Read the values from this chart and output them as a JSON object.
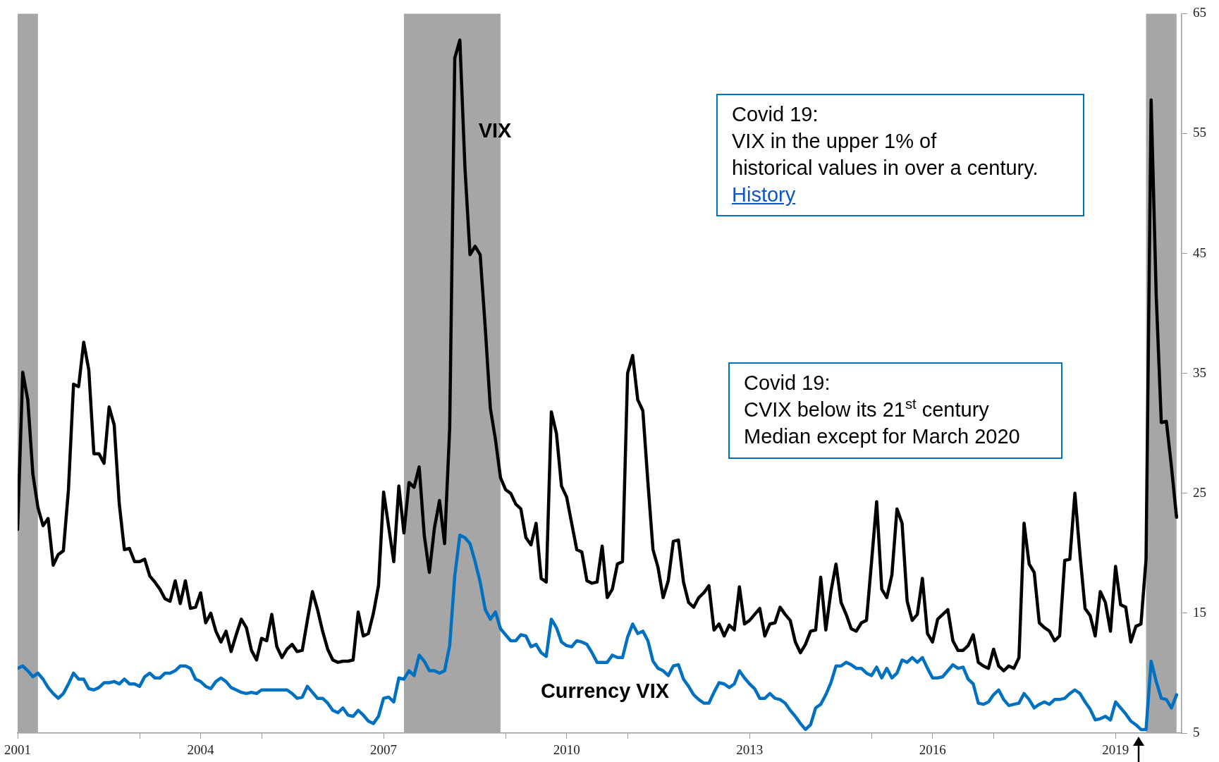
{
  "chart_data": {
    "type": "line",
    "annotations": [
      "Covid 19:\nVIX in the upper 1% of\nhistorical values in over a century.",
      "History",
      "Covid 19:\nCVIX below its 21$^{st}$ century\nMedian except for March 2020"
    ],
    "x": [
      "2001-08",
      "2001-09",
      "2001-10",
      "2001-11",
      "2001-12",
      "2002-01",
      "2002-02",
      "2002-03",
      "2002-04",
      "2002-05",
      "2002-06",
      "2002-07",
      "2002-08",
      "2002-09",
      "2002-10",
      "2002-11",
      "2002-12",
      "2003-01",
      "2003-02",
      "2003-03",
      "2003-04",
      "2003-05",
      "2003-06",
      "2003-07",
      "2003-08",
      "2003-09",
      "2003-10",
      "2003-11",
      "2003-12",
      "2004-01",
      "2004-02",
      "2004-03",
      "2004-04",
      "2004-05",
      "2004-06",
      "2004-07",
      "2004-08",
      "2004-09",
      "2004-10",
      "2004-11",
      "2004-12",
      "2005-01",
      "2005-02",
      "2005-03",
      "2005-04",
      "2005-05",
      "2005-06",
      "2005-07",
      "2005-08",
      "2005-09",
      "2005-10",
      "2005-11",
      "2005-12",
      "2006-01",
      "2006-02",
      "2006-03",
      "2006-04",
      "2006-05",
      "2006-06",
      "2006-07",
      "2006-08",
      "2006-09",
      "2006-10",
      "2006-11",
      "2006-12",
      "2007-01",
      "2007-02",
      "2007-03",
      "2007-04",
      "2007-05",
      "2007-06",
      "2007-07",
      "2007-08",
      "2007-09",
      "2007-10",
      "2007-11",
      "2007-12",
      "2008-01",
      "2008-02",
      "2008-03",
      "2008-04",
      "2008-05",
      "2008-06",
      "2008-07",
      "2008-08",
      "2008-09",
      "2008-10",
      "2008-11",
      "2008-12",
      "2009-01",
      "2009-02",
      "2009-03",
      "2009-04",
      "2009-05",
      "2009-06",
      "2009-07",
      "2009-08",
      "2009-09",
      "2009-10",
      "2009-11",
      "2009-12",
      "2010-01",
      "2010-02",
      "2010-03",
      "2010-04",
      "2010-05",
      "2010-06",
      "2010-07",
      "2010-08",
      "2010-09",
      "2010-10",
      "2010-11",
      "2010-12",
      "2011-01",
      "2011-02",
      "2011-03",
      "2011-04",
      "2011-05",
      "2011-06",
      "2011-07",
      "2011-08",
      "2011-09",
      "2011-10",
      "2011-11",
      "2011-12",
      "2012-01",
      "2012-02",
      "2012-03",
      "2012-04",
      "2012-05",
      "2012-06",
      "2012-07",
      "2012-08",
      "2012-09",
      "2012-10",
      "2012-11",
      "2012-12",
      "2013-01",
      "2013-02",
      "2013-03",
      "2013-04",
      "2013-05",
      "2013-06",
      "2013-07",
      "2013-08",
      "2013-09",
      "2013-10",
      "2013-11",
      "2013-12",
      "2014-01",
      "2014-02",
      "2014-03",
      "2014-04",
      "2014-05",
      "2014-06",
      "2014-07",
      "2014-08",
      "2014-09",
      "2014-10",
      "2014-11",
      "2014-12",
      "2015-01",
      "2015-02",
      "2015-03",
      "2015-04",
      "2015-05",
      "2015-06",
      "2015-07",
      "2015-08",
      "2015-09",
      "2015-10",
      "2015-11",
      "2015-12",
      "2016-01",
      "2016-02",
      "2016-03",
      "2016-04",
      "2016-05",
      "2016-06",
      "2016-07",
      "2016-08",
      "2016-09",
      "2016-10",
      "2016-11",
      "2016-12",
      "2017-01",
      "2017-02",
      "2017-03",
      "2017-04",
      "2017-05",
      "2017-06",
      "2017-07",
      "2017-08",
      "2017-09",
      "2017-10",
      "2017-11",
      "2017-12",
      "2018-01",
      "2018-02",
      "2018-03",
      "2018-04",
      "2018-05",
      "2018-06",
      "2018-07",
      "2018-08",
      "2018-09",
      "2018-10",
      "2018-11",
      "2018-12",
      "2019-01",
      "2019-02",
      "2019-03",
      "2019-04",
      "2019-05",
      "2019-06",
      "2019-07",
      "2019-08",
      "2019-09",
      "2019-10",
      "2019-11",
      "2019-12",
      "2020-01",
      "2020-02",
      "2020-03",
      "2020-04",
      "2020-05",
      "2020-06",
      "2020-07",
      "2020-08"
    ],
    "series": [
      {
        "name": "VIX",
        "color": "#000000",
        "values": [
          22.0,
          35.1,
          32.8,
          26.6,
          23.8,
          22.3,
          22.9,
          19.0,
          19.9,
          20.2,
          25.3,
          34.1,
          33.9,
          37.6,
          35.3,
          28.3,
          28.3,
          27.5,
          32.2,
          30.7,
          24.1,
          20.3,
          20.4,
          19.3,
          19.3,
          19.5,
          18.1,
          17.6,
          17.0,
          16.2,
          16.0,
          17.7,
          15.8,
          17.7,
          15.4,
          15.5,
          16.7,
          14.2,
          15.0,
          13.5,
          12.6,
          13.5,
          11.8,
          13.2,
          14.5,
          13.8,
          11.9,
          11.1,
          12.9,
          12.7,
          14.9,
          12.2,
          11.3,
          12.0,
          12.4,
          11.8,
          11.9,
          14.4,
          16.8,
          15.3,
          13.5,
          12.0,
          11.1,
          10.9,
          11.0,
          11.0,
          11.1,
          15.1,
          13.1,
          13.3,
          15.0,
          17.3,
          25.1,
          22.2,
          19.3,
          25.6,
          21.7,
          25.9,
          25.5,
          27.2,
          21.5,
          18.4,
          22.1,
          24.4,
          20.8,
          30.4,
          61.3,
          62.8,
          52.2,
          44.9,
          45.6,
          44.9,
          38.8,
          32.1,
          29.5,
          26.3,
          25.3,
          25.0,
          24.1,
          23.7,
          21.3,
          20.7,
          22.5,
          17.9,
          17.6,
          31.8,
          30.0,
          25.6,
          24.7,
          22.5,
          20.3,
          20.1,
          17.7,
          17.5,
          17.6,
          20.6,
          16.3,
          17.0,
          19.1,
          19.3,
          35.0,
          36.5,
          32.8,
          31.9,
          25.9,
          20.3,
          18.8,
          16.3,
          17.7,
          21.0,
          21.1,
          17.6,
          15.9,
          15.5,
          16.3,
          16.7,
          17.3,
          13.6,
          14.1,
          13.1,
          14.0,
          13.6,
          17.2,
          14.1,
          14.4,
          14.9,
          15.4,
          13.1,
          14.1,
          14.2,
          15.5,
          14.9,
          14.4,
          12.6,
          11.7,
          12.4,
          13.5,
          13.6,
          18.0,
          13.6,
          16.8,
          19.1,
          15.9,
          14.9,
          13.7,
          13.5,
          14.2,
          14.4,
          19.3,
          24.3,
          17.0,
          16.3,
          18.2,
          23.7,
          22.5,
          16.0,
          14.4,
          14.9,
          17.9,
          13.3,
          12.6,
          14.5,
          14.9,
          15.3,
          12.7,
          11.9,
          11.9,
          12.3,
          13.2,
          10.9,
          10.6,
          10.4,
          12.0,
          10.6,
          10.2,
          10.6,
          10.4,
          11.3,
          22.5,
          19.1,
          18.4,
          14.2,
          13.8,
          13.5,
          12.7,
          13.1,
          19.4,
          19.5,
          25.0,
          19.9,
          15.4,
          14.8,
          13.1,
          16.8,
          15.9,
          13.5,
          18.9,
          15.7,
          15.5,
          12.6,
          13.9,
          14.1,
          19.5,
          57.8,
          41.5,
          30.9,
          31.0,
          27.2,
          23.0
        ]
      },
      {
        "name": "Currency VIX",
        "color": "#0070c0",
        "values": [
          10.4,
          10.6,
          10.2,
          9.7,
          10.0,
          9.5,
          8.8,
          8.3,
          7.9,
          8.3,
          9.1,
          10.0,
          9.5,
          9.5,
          8.7,
          8.6,
          8.8,
          9.2,
          9.2,
          9.3,
          9.1,
          9.5,
          9.1,
          9.1,
          8.9,
          9.7,
          10.0,
          9.6,
          9.6,
          10.0,
          10.0,
          10.2,
          10.6,
          10.6,
          10.4,
          9.5,
          9.3,
          8.9,
          8.7,
          9.3,
          9.6,
          9.3,
          8.8,
          8.6,
          8.4,
          8.3,
          8.4,
          8.3,
          8.6,
          8.6,
          8.6,
          8.6,
          8.6,
          8.6,
          8.3,
          7.9,
          8.0,
          8.9,
          8.4,
          7.9,
          7.9,
          7.5,
          6.9,
          6.7,
          7.1,
          6.5,
          6.4,
          6.9,
          6.5,
          6.0,
          5.8,
          6.4,
          7.9,
          8.0,
          7.6,
          9.6,
          9.5,
          10.2,
          9.8,
          11.5,
          11.0,
          10.2,
          10.2,
          10.0,
          10.2,
          12.3,
          18.1,
          21.5,
          21.3,
          20.8,
          19.3,
          17.6,
          15.3,
          14.5,
          15.1,
          13.7,
          13.2,
          12.7,
          12.7,
          13.2,
          13.1,
          12.2,
          12.4,
          11.7,
          11.4,
          14.5,
          13.8,
          12.6,
          12.3,
          12.2,
          12.7,
          12.6,
          12.4,
          11.7,
          10.9,
          10.9,
          10.9,
          11.5,
          11.3,
          11.3,
          13.0,
          14.1,
          13.3,
          13.5,
          12.7,
          11.0,
          10.4,
          10.2,
          9.8,
          10.6,
          10.7,
          9.5,
          8.9,
          8.2,
          7.8,
          7.5,
          7.5,
          8.4,
          9.2,
          9.1,
          8.8,
          9.1,
          10.2,
          9.6,
          9.1,
          8.7,
          7.9,
          7.9,
          8.3,
          7.9,
          7.8,
          7.5,
          6.9,
          6.4,
          5.8,
          5.3,
          5.7,
          7.1,
          7.4,
          8.2,
          9.2,
          10.6,
          10.6,
          10.9,
          10.7,
          10.4,
          10.4,
          10.0,
          9.8,
          10.5,
          9.6,
          10.4,
          9.6,
          10.0,
          11.1,
          10.9,
          11.3,
          10.9,
          11.3,
          10.4,
          9.6,
          9.6,
          9.7,
          10.2,
          10.7,
          10.4,
          10.5,
          9.5,
          9.1,
          7.5,
          7.4,
          7.6,
          8.2,
          8.6,
          7.8,
          7.3,
          7.4,
          7.5,
          8.3,
          7.8,
          7.1,
          7.4,
          7.6,
          7.4,
          7.8,
          7.8,
          7.9,
          8.3,
          8.6,
          8.3,
          7.6,
          7.0,
          6.1,
          6.2,
          6.4,
          6.1,
          7.6,
          7.1,
          6.6,
          6.0,
          5.7,
          5.3,
          5.3,
          11.0,
          9.3,
          7.9,
          7.8,
          7.1,
          8.2
        ]
      }
    ],
    "xlim": [
      "2001-08",
      "2020-09"
    ],
    "xticks": [
      {
        "value": "2001-08",
        "label": "2001"
      },
      {
        "value": "2003-08",
        "label": null
      },
      {
        "value": "2004-08",
        "label": "2004"
      },
      {
        "value": "2005-08",
        "label": null
      },
      {
        "value": "2007-08",
        "label": "2007"
      },
      {
        "value": "2009-08",
        "label": null
      },
      {
        "value": "2010-08",
        "label": "2010"
      },
      {
        "value": "2011-08",
        "label": null
      },
      {
        "value": "2013-08",
        "label": "2013"
      },
      {
        "value": "2015-08",
        "label": null
      },
      {
        "value": "2016-08",
        "label": "2016"
      },
      {
        "value": "2017-08",
        "label": null
      },
      {
        "value": "2019-08",
        "label": "2019"
      }
    ],
    "ylim": [
      5,
      65
    ],
    "yticks": [
      5,
      15,
      25,
      35,
      45,
      55,
      65
    ],
    "bands": [
      {
        "axis": "x",
        "from": "2001-08",
        "to": "2001-12",
        "color": "#a6a6a6"
      },
      {
        "axis": "x",
        "from": "2007-12",
        "to": "2009-07",
        "color": "#a6a6a6"
      },
      {
        "axis": "x",
        "from": "2020-02",
        "to": "2020-08",
        "color": "#a6a6a6"
      }
    ]
  }
}
